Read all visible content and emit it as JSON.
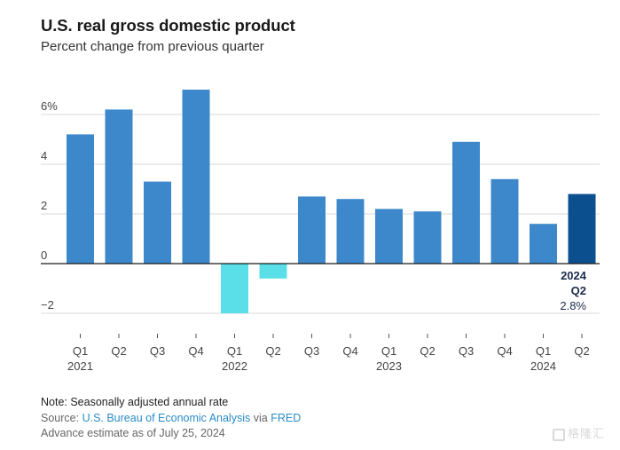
{
  "header": {
    "title": "U.S. real gross domestic product",
    "subtitle": "Percent change from previous quarter"
  },
  "chart_data": {
    "type": "bar",
    "title": "U.S. real gross domestic product",
    "subtitle": "Percent change from previous quarter",
    "xlabel": "",
    "ylabel": "",
    "ylim": [
      -2.4,
      7.0
    ],
    "yticks": [
      -2,
      0,
      2,
      4,
      6
    ],
    "ytick_labels": [
      "−2",
      "0",
      "2",
      "4",
      "6%"
    ],
    "grid": true,
    "categories": [
      "Q1 2021",
      "Q2 2021",
      "Q3 2021",
      "Q4 2021",
      "Q1 2022",
      "Q2 2022",
      "Q3 2022",
      "Q4 2022",
      "Q1 2023",
      "Q2 2023",
      "Q3 2023",
      "Q4 2023",
      "Q1 2024",
      "Q2 2024"
    ],
    "quarter_labels": [
      "Q1",
      "Q2",
      "Q3",
      "Q4",
      "Q1",
      "Q2",
      "Q3",
      "Q4",
      "Q1",
      "Q2",
      "Q3",
      "Q4",
      "Q1",
      "Q2"
    ],
    "year_labels": [
      "2021",
      "",
      "",
      "",
      "2022",
      "",
      "",
      "",
      "2023",
      "",
      "",
      "",
      "2024",
      ""
    ],
    "values": [
      5.2,
      6.2,
      3.3,
      7.0,
      -2.0,
      -0.6,
      2.7,
      2.6,
      2.2,
      2.1,
      4.9,
      3.4,
      1.6,
      2.8
    ],
    "colors": {
      "positive": "#3d88cb",
      "negative": "#5adfe8",
      "highlight": "#0b4f8f",
      "grid": "#d9d9d9",
      "zero_line": "#1a1a1a"
    },
    "highlight_index": 13,
    "annotation": {
      "year": "2024",
      "quarter": "Q2",
      "value": "2.8%"
    }
  },
  "footer": {
    "note": "Note: Seasonally adjusted annual rate",
    "source_prefix": "Source: ",
    "source_link": "U.S. Bureau of Economic Analysis",
    "source_via": " via ",
    "source_link2": "FRED",
    "advance": "Advance estimate as of July 25, 2024"
  },
  "watermark": {
    "text": "格隆汇"
  }
}
